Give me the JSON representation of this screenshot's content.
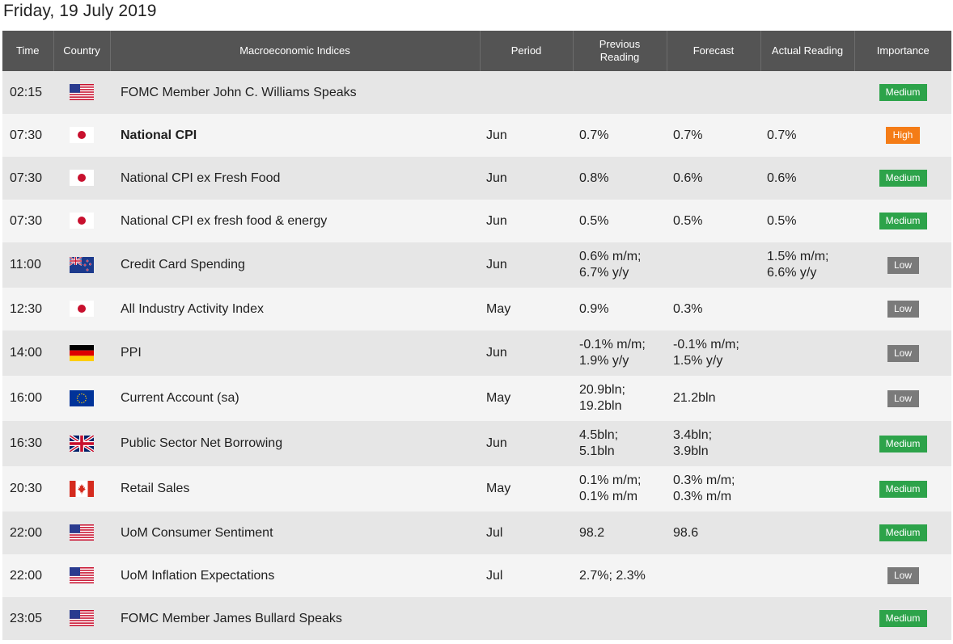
{
  "page": {
    "date": "Friday, 19 July 2019"
  },
  "headers": {
    "time": "Time",
    "country": "Country",
    "indices": "Macroeconomic Indices",
    "period": "Period",
    "previous_line1": "Previous",
    "previous_line2": "Reading",
    "forecast": "Forecast",
    "actual": "Actual Reading",
    "importance": "Importance"
  },
  "rows": [
    {
      "time": "02:15",
      "flag": "us-flag-icon",
      "indicator": "FOMC Member John C. Williams Speaks",
      "period": "",
      "prev1": "",
      "prev2": "",
      "fc1": "",
      "fc2": "",
      "act1": "",
      "act2": "",
      "importance": "Medium"
    },
    {
      "time": "07:30",
      "flag": "jp-flag-icon",
      "indicator": "National CPI",
      "period": "Jun",
      "prev1": "0.7%",
      "prev2": "",
      "fc1": "0.7%",
      "fc2": "",
      "act1": "0.7%",
      "act2": "",
      "importance": "High"
    },
    {
      "time": "07:30",
      "flag": "jp-flag-icon",
      "indicator": "National CPI ex Fresh Food",
      "period": "Jun",
      "prev1": "0.8%",
      "prev2": "",
      "fc1": "0.6%",
      "fc2": "",
      "act1": "0.6%",
      "act2": "",
      "importance": "Medium"
    },
    {
      "time": "07:30",
      "flag": "jp-flag-icon",
      "indicator": "National CPI ex fresh food & energy",
      "period": "Jun",
      "prev1": "0.5%",
      "prev2": "",
      "fc1": "0.5%",
      "fc2": "",
      "act1": "0.5%",
      "act2": "",
      "importance": "Medium"
    },
    {
      "time": "11:00",
      "flag": "nz-flag-icon",
      "indicator": "Credit Card Spending",
      "period": "Jun",
      "prev1": "0.6% m/m;",
      "prev2": "6.7% y/y",
      "fc1": "",
      "fc2": "",
      "act1": "1.5% m/m;",
      "act2": "6.6% y/y",
      "importance": "Low"
    },
    {
      "time": "12:30",
      "flag": "jp-flag-icon",
      "indicator": "All Industry Activity Index",
      "period": "May",
      "prev1": "0.9%",
      "prev2": "",
      "fc1": "0.3%",
      "fc2": "",
      "act1": "",
      "act2": "",
      "importance": "Low"
    },
    {
      "time": "14:00",
      "flag": "de-flag-icon",
      "indicator": "PPI",
      "period": "Jun",
      "prev1": "-0.1% m/m;",
      "prev2": "1.9% y/y",
      "fc1": "-0.1% m/m;",
      "fc2": "1.5% y/y",
      "act1": "",
      "act2": "",
      "importance": "Low"
    },
    {
      "time": "16:00",
      "flag": "eu-flag-icon",
      "indicator": "Current Account (sa)",
      "period": "May",
      "prev1": "20.9bln;",
      "prev2": "19.2bln",
      "fc1": "21.2bln",
      "fc2": "",
      "act1": "",
      "act2": "",
      "importance": "Low"
    },
    {
      "time": "16:30",
      "flag": "uk-flag-icon",
      "indicator": "Public Sector Net Borrowing",
      "period": "Jun",
      "prev1": "4.5bln;",
      "prev2": "5.1bln",
      "fc1": "3.4bln;",
      "fc2": "3.9bln",
      "act1": "",
      "act2": "",
      "importance": "Medium"
    },
    {
      "time": "20:30",
      "flag": "ca-flag-icon",
      "indicator": "Retail Sales",
      "period": "May",
      "prev1": "0.1% m/m;",
      "prev2": "0.1% m/m",
      "fc1": "0.3% m/m;",
      "fc2": "0.3% m/m",
      "act1": "",
      "act2": "",
      "importance": "Medium"
    },
    {
      "time": "22:00",
      "flag": "us-flag-icon",
      "indicator": "UoM Consumer Sentiment",
      "period": "Jul",
      "prev1": "98.2",
      "prev2": "",
      "fc1": "98.6",
      "fc2": "",
      "act1": "",
      "act2": "",
      "importance": "Medium"
    },
    {
      "time": "22:00",
      "flag": "us-flag-icon",
      "indicator": "UoM Inflation Expectations",
      "period": "Jul",
      "prev1": "2.7%; 2.3%",
      "prev2": "",
      "fc1": "",
      "fc2": "",
      "act1": "",
      "act2": "",
      "importance": "Low"
    },
    {
      "time": "23:05",
      "flag": "us-flag-icon",
      "indicator": "FOMC Member James Bullard Speaks",
      "period": "",
      "prev1": "",
      "prev2": "",
      "fc1": "",
      "fc2": "",
      "act1": "",
      "act2": "",
      "importance": "Medium"
    }
  ],
  "colors": {
    "header_bg": "#545454",
    "row_odd": "#e6e6e6",
    "row_even": "#f4f4f4",
    "importance_medium": "#2da34a",
    "importance_high": "#f47c16",
    "importance_low": "#7a7a7a"
  }
}
